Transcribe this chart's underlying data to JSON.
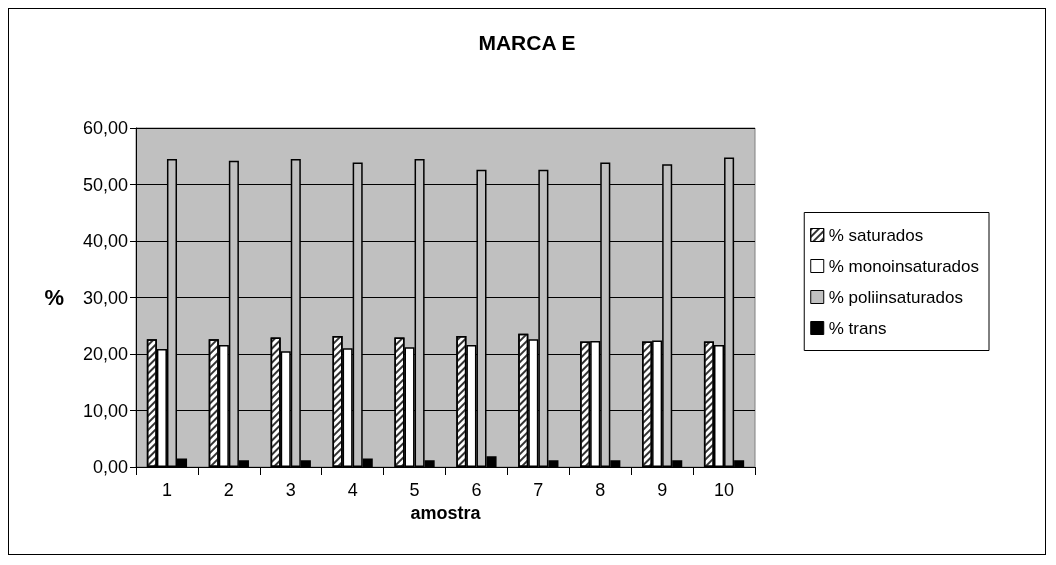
{
  "chart_data": {
    "type": "bar",
    "title": "MARCA E",
    "xlabel": "amostra",
    "ylabel": "%",
    "categories": [
      "1",
      "2",
      "3",
      "4",
      "5",
      "6",
      "7",
      "8",
      "9",
      "10"
    ],
    "series": [
      {
        "name": "% saturados",
        "color": "#ffffff",
        "values": [
          22.6,
          22.6,
          22.9,
          23.2,
          22.9,
          23.2,
          23.6,
          22.2,
          22.2,
          22.2
        ]
      },
      {
        "name": "% monoinsaturados",
        "color": "#ffffff",
        "values": [
          20.9,
          21.6,
          20.5,
          21.0,
          21.2,
          21.6,
          22.6,
          22.3,
          22.4,
          21.6
        ]
      },
      {
        "name": "% poliinsaturados",
        "color": "#c0c0c0",
        "values": [
          54.5,
          54.2,
          54.5,
          53.9,
          54.5,
          52.6,
          52.6,
          53.9,
          53.6,
          54.8
        ]
      },
      {
        "name": "% trans",
        "color": "#000000",
        "values": [
          1.5,
          1.2,
          1.2,
          1.5,
          1.2,
          1.9,
          1.2,
          1.2,
          1.2,
          1.2
        ]
      }
    ],
    "ylim": [
      0,
      60
    ],
    "yticks": [
      {
        "value": 0,
        "label": "0,00"
      },
      {
        "value": 10,
        "label": "10,00"
      },
      {
        "value": 20,
        "label": "20,00"
      },
      {
        "value": 30,
        "label": "30,00"
      },
      {
        "value": 40,
        "label": "40,00"
      },
      {
        "value": 50,
        "label": "50,00"
      },
      {
        "value": 60,
        "label": "60,00"
      }
    ],
    "grid": "y",
    "legend": "right"
  }
}
